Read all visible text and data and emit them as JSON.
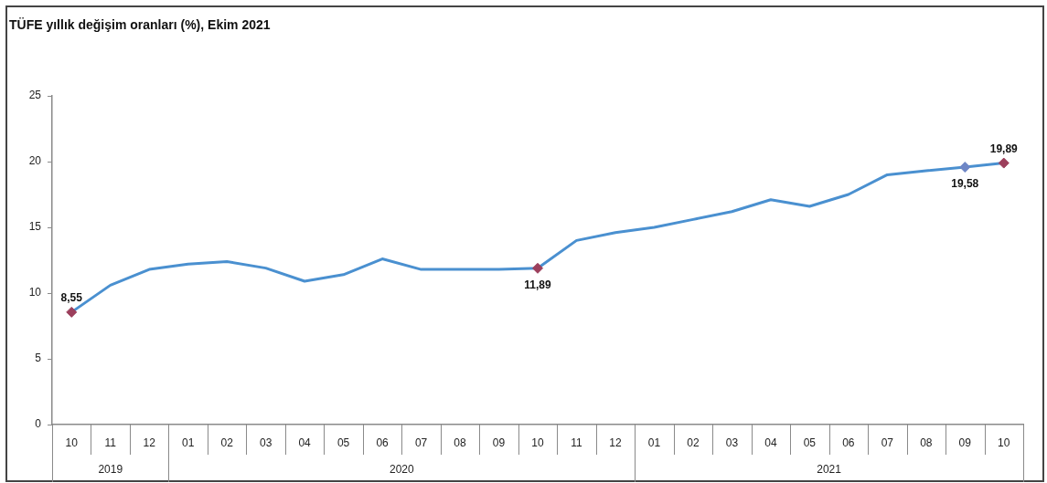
{
  "chart_data": {
    "type": "line",
    "title": "TÜFE yıllık değişim oranları (%), Ekim 2021",
    "x": [
      "2019-10",
      "2019-11",
      "2019-12",
      "2020-01",
      "2020-02",
      "2020-03",
      "2020-04",
      "2020-05",
      "2020-06",
      "2020-07",
      "2020-08",
      "2020-09",
      "2020-10",
      "2020-11",
      "2020-12",
      "2021-01",
      "2021-02",
      "2021-03",
      "2021-04",
      "2021-05",
      "2021-06",
      "2021-07",
      "2021-08",
      "2021-09",
      "2021-10"
    ],
    "xlim": [
      "2019-09-16",
      "2021-10-16"
    ],
    "xticks": [
      {
        "value": "2019-10",
        "label": "10"
      },
      {
        "value": "2019-11",
        "label": "11"
      },
      {
        "value": "2019-12",
        "label": "12"
      },
      {
        "value": "2020-01",
        "label": "01"
      },
      {
        "value": "2020-02",
        "label": "02"
      },
      {
        "value": "2020-03",
        "label": "03"
      },
      {
        "value": "2020-04",
        "label": "04"
      },
      {
        "value": "2020-05",
        "label": "05"
      },
      {
        "value": "2020-06",
        "label": "06"
      },
      {
        "value": "2020-07",
        "label": "07"
      },
      {
        "value": "2020-08",
        "label": "08"
      },
      {
        "value": "2020-09",
        "label": "09"
      },
      {
        "value": "2020-10",
        "label": "10"
      },
      {
        "value": "2020-11",
        "label": "11"
      },
      {
        "value": "2020-12",
        "label": "12"
      },
      {
        "value": "2021-01",
        "label": "01"
      },
      {
        "value": "2021-02",
        "label": "02"
      },
      {
        "value": "2021-03",
        "label": "03"
      },
      {
        "value": "2021-04",
        "label": "04"
      },
      {
        "value": "2021-05",
        "label": "05"
      },
      {
        "value": "2021-06",
        "label": "06"
      },
      {
        "value": "2021-07",
        "label": "07"
      },
      {
        "value": "2021-08",
        "label": "08"
      },
      {
        "value": "2021-09",
        "label": "09"
      },
      {
        "value": "2021-10",
        "label": "10"
      }
    ],
    "ylim": [
      0,
      25
    ],
    "yticks": [
      0,
      5,
      10,
      15,
      20,
      25
    ],
    "series": [
      {
        "color": "#4a90d0",
        "values": [
          8.55,
          10.6,
          11.8,
          12.2,
          12.4,
          11.9,
          10.9,
          11.4,
          12.6,
          11.8,
          11.8,
          11.8,
          11.89,
          14.0,
          14.6,
          15.0,
          15.6,
          16.2,
          17.1,
          16.6,
          17.5,
          19.0,
          19.3,
          19.58,
          19.89
        ]
      },
      {
        "type": "scatter",
        "marker": "diamond",
        "color": "#9c3f5c",
        "x": [
          "2019-10",
          "2020-10",
          "2021-10"
        ],
        "values": [
          8.55,
          11.89,
          19.89
        ],
        "value_labels": [
          "8,55",
          "11,89",
          "19,89"
        ]
      },
      {
        "type": "scatter",
        "marker": "diamond",
        "color": "#6e86c6",
        "x": [
          "2021-09"
        ],
        "values": [
          19.58
        ],
        "value_labels": [
          "19,58"
        ]
      }
    ],
    "annotations": [
      "2019",
      "2020",
      "2021"
    ]
  }
}
